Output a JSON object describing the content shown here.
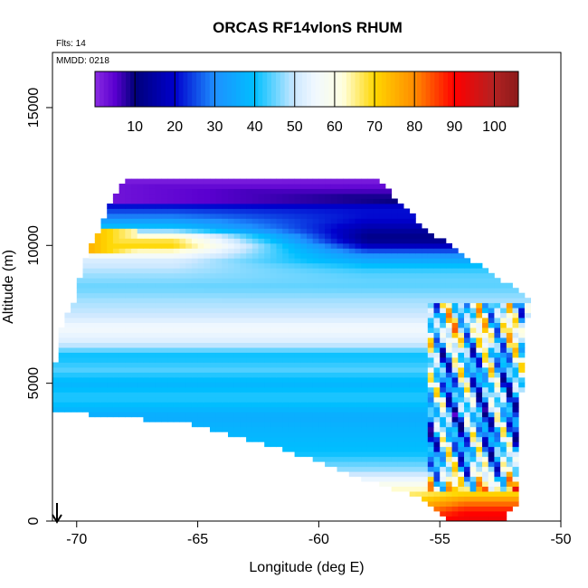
{
  "chart_data": {
    "type": "heatmap",
    "title": "ORCAS RF14vlonS RHUM",
    "notes": [
      "Flts: 14",
      "MMDD: 0218"
    ],
    "xlabel": "Longitude (deg E)",
    "ylabel": "Altitude (m)",
    "xlim": [
      -71,
      -50
    ],
    "ylim": [
      0,
      17000
    ],
    "x_ticks": [
      -70,
      -65,
      -60,
      -55,
      -50
    ],
    "y_ticks": [
      0,
      5000,
      10000,
      15000
    ],
    "colorbar": {
      "range": [
        0,
        106
      ],
      "ticks": [
        10,
        20,
        30,
        40,
        50,
        60,
        70,
        80,
        90,
        100
      ],
      "stops": [
        {
          "value": 0,
          "color": "#8a2be2"
        },
        {
          "value": 5,
          "color": "#5a00d0"
        },
        {
          "value": 10,
          "color": "#00007a"
        },
        {
          "value": 20,
          "color": "#0000cd"
        },
        {
          "value": 30,
          "color": "#1e90ff"
        },
        {
          "value": 40,
          "color": "#00bfff"
        },
        {
          "value": 50,
          "color": "#cde8ff"
        },
        {
          "value": 55,
          "color": "#f0f8ff"
        },
        {
          "value": 62,
          "color": "#ffffe0"
        },
        {
          "value": 70,
          "color": "#ffd700"
        },
        {
          "value": 80,
          "color": "#ff8c00"
        },
        {
          "value": 90,
          "color": "#ff0000"
        },
        {
          "value": 100,
          "color": "#b22222"
        },
        {
          "value": 106,
          "color": "#8b1a1a"
        }
      ]
    },
    "footprint": {
      "left_lon_by_altitude": [
        [
          0,
          -54.5
        ],
        [
          800,
          -55.5
        ],
        [
          1500,
          -58
        ],
        [
          2500,
          -61
        ],
        [
          3500,
          -65
        ],
        [
          4000,
          -70.8
        ],
        [
          5500,
          -70.8
        ],
        [
          7000,
          -70.5
        ],
        [
          8000,
          -70
        ],
        [
          9500,
          -69.5
        ],
        [
          10500,
          -69
        ],
        [
          11500,
          -68.5
        ],
        [
          12300,
          -68
        ]
      ],
      "right_lon_by_altitude": [
        [
          0,
          -52.5
        ],
        [
          800,
          -51.8
        ],
        [
          4000,
          -51.8
        ],
        [
          7000,
          -51.6
        ],
        [
          8000,
          -51.3
        ],
        [
          9000,
          -53
        ],
        [
          10500,
          -55.5
        ],
        [
          11500,
          -56.8
        ],
        [
          12300,
          -57.5
        ]
      ]
    },
    "rhum_profile_west": [
      [
        0,
        88
      ],
      [
        300,
        82
      ],
      [
        700,
        72
      ],
      [
        1200,
        62
      ],
      [
        1800,
        48
      ],
      [
        2500,
        40
      ],
      [
        3200,
        38
      ],
      [
        3800,
        36
      ],
      [
        4500,
        42
      ],
      [
        5000,
        38
      ],
      [
        5500,
        44
      ],
      [
        6000,
        40
      ],
      [
        6500,
        52
      ],
      [
        7000,
        56
      ],
      [
        7500,
        50
      ],
      [
        8000,
        48
      ],
      [
        8500,
        45
      ],
      [
        9000,
        48
      ],
      [
        9500,
        52
      ],
      [
        10000,
        70
      ],
      [
        10300,
        66
      ],
      [
        10600,
        42
      ],
      [
        11000,
        30
      ],
      [
        11400,
        22
      ],
      [
        11800,
        8
      ],
      [
        12300,
        2
      ]
    ],
    "dry_band": {
      "center_alt": 10300,
      "center_lon": -57,
      "value": 12
    },
    "moist_surface_east": {
      "top_alt": 1200,
      "lon_from": -56,
      "value": 92
    }
  }
}
